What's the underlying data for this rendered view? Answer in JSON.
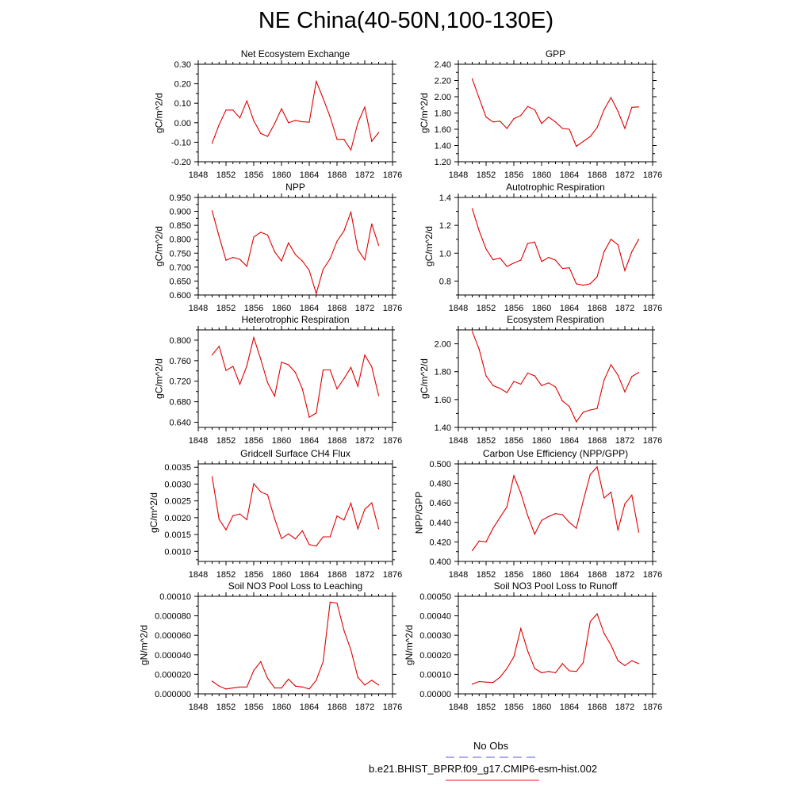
{
  "title": "NE China(40-50N,100-130E)",
  "legend": {
    "obs_label": "No Obs",
    "obs_color": "#5555dd",
    "model_label": "b.e21.BHIST_BPRP.f09_g17.CMIP6-esm-hist.002",
    "model_color": "#e8141e"
  },
  "line_color": "#e00000",
  "chart_data": [
    {
      "type": "line",
      "title": "Net Ecosystem Exchange",
      "ylabel": "gC/m^2/d",
      "xlim": [
        1848,
        1876
      ],
      "xticks": [
        1848,
        1852,
        1856,
        1860,
        1864,
        1868,
        1872,
        1876
      ],
      "ylim": [
        -0.2,
        0.3
      ],
      "yticks": [
        "-0.20",
        "-0.10",
        "0.00",
        "0.10",
        "0.20",
        "0.30"
      ],
      "x": [
        1850,
        1851,
        1852,
        1853,
        1854,
        1855,
        1856,
        1857,
        1858,
        1859,
        1860,
        1861,
        1862,
        1863,
        1864,
        1865,
        1866,
        1867,
        1868,
        1869,
        1870,
        1871,
        1872,
        1873,
        1874
      ],
      "values": [
        -0.105,
        -0.01,
        0.065,
        0.065,
        0.025,
        0.112,
        0.01,
        -0.055,
        -0.07,
        -0.005,
        0.072,
        0.0,
        0.012,
        0.005,
        0.003,
        0.212,
        0.125,
        0.03,
        -0.085,
        -0.085,
        -0.14,
        0.0,
        0.08,
        -0.095,
        -0.05
      ]
    },
    {
      "type": "line",
      "title": "GPP",
      "ylabel": "gC/m^2/d",
      "xlim": [
        1848,
        1876
      ],
      "xticks": [
        1848,
        1852,
        1856,
        1860,
        1864,
        1868,
        1872,
        1876
      ],
      "ylim": [
        1.2,
        2.4
      ],
      "yticks": [
        "1.20",
        "1.40",
        "1.60",
        "1.80",
        "2.00",
        "2.20",
        "2.40"
      ],
      "x": [
        1850,
        1851,
        1852,
        1853,
        1854,
        1855,
        1856,
        1857,
        1858,
        1859,
        1860,
        1861,
        1862,
        1863,
        1864,
        1865,
        1866,
        1867,
        1868,
        1869,
        1870,
        1871,
        1872,
        1873,
        1874
      ],
      "values": [
        2.22,
        1.98,
        1.75,
        1.69,
        1.7,
        1.61,
        1.73,
        1.77,
        1.88,
        1.84,
        1.67,
        1.75,
        1.69,
        1.61,
        1.6,
        1.39,
        1.45,
        1.51,
        1.62,
        1.84,
        1.99,
        1.82,
        1.61,
        1.87,
        1.875
      ]
    },
    {
      "type": "line",
      "title": "NPP",
      "ylabel": "gC/m^2/d",
      "xlim": [
        1848,
        1876
      ],
      "xticks": [
        1848,
        1852,
        1856,
        1860,
        1864,
        1868,
        1872,
        1876
      ],
      "ylim": [
        0.6,
        0.95
      ],
      "yticks": [
        "0.600",
        "0.650",
        "0.700",
        "0.750",
        "0.800",
        "0.850",
        "0.900",
        "0.950"
      ],
      "x": [
        1850,
        1851,
        1852,
        1853,
        1854,
        1855,
        1856,
        1857,
        1858,
        1859,
        1860,
        1861,
        1862,
        1863,
        1864,
        1865,
        1866,
        1867,
        1868,
        1869,
        1870,
        1871,
        1872,
        1873,
        1874
      ],
      "values": [
        0.902,
        0.81,
        0.725,
        0.735,
        0.728,
        0.703,
        0.808,
        0.825,
        0.815,
        0.755,
        0.722,
        0.787,
        0.745,
        0.722,
        0.688,
        0.605,
        0.692,
        0.73,
        0.793,
        0.83,
        0.897,
        0.763,
        0.726,
        0.855,
        0.778
      ]
    },
    {
      "type": "line",
      "title": "Autotrophic Respiration",
      "ylabel": "gC/m^2/d",
      "xlim": [
        1848,
        1876
      ],
      "xticks": [
        1848,
        1852,
        1856,
        1860,
        1864,
        1868,
        1872,
        1876
      ],
      "ylim": [
        0.7,
        1.4
      ],
      "yticks": [
        "0.8",
        "1.0",
        "1.2",
        "1.4"
      ],
      "x": [
        1850,
        1851,
        1852,
        1853,
        1854,
        1855,
        1856,
        1857,
        1858,
        1859,
        1860,
        1861,
        1862,
        1863,
        1864,
        1865,
        1866,
        1867,
        1868,
        1869,
        1870,
        1871,
        1872,
        1873,
        1874
      ],
      "values": [
        1.32,
        1.16,
        1.03,
        0.952,
        0.965,
        0.905,
        0.93,
        0.95,
        1.07,
        1.08,
        0.94,
        0.97,
        0.95,
        0.89,
        0.895,
        0.78,
        0.77,
        0.78,
        0.83,
        1.01,
        1.1,
        1.06,
        0.875,
        1.01,
        1.1
      ]
    },
    {
      "type": "line",
      "title": "Heterotrophic Respiration",
      "ylabel": "gC/m^2/d",
      "xlim": [
        1848,
        1876
      ],
      "xticks": [
        1848,
        1852,
        1856,
        1860,
        1864,
        1868,
        1872,
        1876
      ],
      "ylim": [
        0.63,
        0.82
      ],
      "yticks": [
        "0.640",
        "0.680",
        "0.720",
        "0.760",
        "0.800"
      ],
      "x": [
        1850,
        1851,
        1852,
        1853,
        1854,
        1855,
        1856,
        1857,
        1858,
        1859,
        1860,
        1861,
        1862,
        1863,
        1864,
        1865,
        1866,
        1867,
        1868,
        1869,
        1870,
        1871,
        1872,
        1873,
        1874
      ],
      "values": [
        0.771,
        0.788,
        0.741,
        0.749,
        0.714,
        0.75,
        0.805,
        0.763,
        0.717,
        0.691,
        0.757,
        0.752,
        0.737,
        0.705,
        0.65,
        0.658,
        0.742,
        0.742,
        0.705,
        0.725,
        0.747,
        0.71,
        0.771,
        0.748,
        0.692
      ]
    },
    {
      "type": "line",
      "title": "Ecosystem Respiration",
      "ylabel": "gC/m^2/d",
      "xlim": [
        1848,
        1876
      ],
      "xticks": [
        1848,
        1852,
        1856,
        1860,
        1864,
        1868,
        1872,
        1876
      ],
      "ylim": [
        1.4,
        2.1
      ],
      "yticks": [
        "1.40",
        "1.60",
        "1.80",
        "2.00"
      ],
      "x": [
        1850,
        1851,
        1852,
        1853,
        1854,
        1855,
        1856,
        1857,
        1858,
        1859,
        1860,
        1861,
        1862,
        1863,
        1864,
        1865,
        1866,
        1867,
        1868,
        1869,
        1870,
        1871,
        1872,
        1873,
        1874
      ],
      "values": [
        2.09,
        1.96,
        1.77,
        1.7,
        1.68,
        1.65,
        1.73,
        1.71,
        1.79,
        1.77,
        1.7,
        1.72,
        1.69,
        1.59,
        1.55,
        1.44,
        1.51,
        1.525,
        1.535,
        1.74,
        1.85,
        1.775,
        1.655,
        1.765,
        1.795
      ]
    },
    {
      "type": "line",
      "title": "Gridcell Surface CH4 Flux",
      "ylabel": "gC/m^2/d",
      "xlim": [
        1848,
        1876
      ],
      "xticks": [
        1848,
        1852,
        1856,
        1860,
        1864,
        1868,
        1872,
        1876
      ],
      "ylim": [
        0.0007,
        0.0036
      ],
      "yticks": [
        "0.0010",
        "0.0015",
        "0.0020",
        "0.0025",
        "0.0030",
        "0.0035"
      ],
      "x": [
        1850,
        1851,
        1852,
        1853,
        1854,
        1855,
        1856,
        1857,
        1858,
        1859,
        1860,
        1861,
        1862,
        1863,
        1864,
        1865,
        1866,
        1867,
        1868,
        1869,
        1870,
        1871,
        1872,
        1873,
        1874
      ],
      "values": [
        0.00322,
        0.00195,
        0.00164,
        0.00206,
        0.00211,
        0.00194,
        0.00301,
        0.00277,
        0.00268,
        0.00197,
        0.00138,
        0.00152,
        0.00137,
        0.00161,
        0.0012,
        0.00116,
        0.00143,
        0.00143,
        0.00205,
        0.00193,
        0.00243,
        0.00167,
        0.00225,
        0.00244,
        0.00167
      ]
    },
    {
      "type": "line",
      "title": "Carbon Use Efficiency (NPP/GPP)",
      "ylabel": "NPP/GPP",
      "xlim": [
        1848,
        1876
      ],
      "xticks": [
        1848,
        1852,
        1856,
        1860,
        1864,
        1868,
        1872,
        1876
      ],
      "ylim": [
        0.4,
        0.5
      ],
      "yticks": [
        "0.400",
        "0.420",
        "0.440",
        "0.460",
        "0.480",
        "0.500"
      ],
      "x": [
        1850,
        1851,
        1852,
        1853,
        1854,
        1855,
        1856,
        1857,
        1858,
        1859,
        1860,
        1861,
        1862,
        1863,
        1864,
        1865,
        1866,
        1867,
        1868,
        1869,
        1870,
        1871,
        1872,
        1873,
        1874
      ],
      "values": [
        0.411,
        0.421,
        0.42,
        0.434,
        0.445,
        0.456,
        0.488,
        0.47,
        0.447,
        0.428,
        0.442,
        0.446,
        0.449,
        0.448,
        0.44,
        0.434,
        0.462,
        0.489,
        0.497,
        0.465,
        0.471,
        0.432,
        0.459,
        0.468,
        0.43
      ]
    },
    {
      "type": "line",
      "title": "Soil NO3 Pool Loss to Leaching",
      "ylabel": "gN/m^2/d",
      "xlim": [
        1848,
        1876
      ],
      "xticks": [
        1848,
        1852,
        1856,
        1860,
        1864,
        1868,
        1872,
        1876
      ],
      "ylim": [
        0.0,
        0.0001
      ],
      "yticks": [
        "0.000000",
        "0.000020",
        "0.000040",
        "0.000060",
        "0.000080",
        "0.00010"
      ],
      "x": [
        1850,
        1851,
        1852,
        1853,
        1854,
        1855,
        1856,
        1857,
        1858,
        1859,
        1860,
        1861,
        1862,
        1863,
        1864,
        1865,
        1866,
        1867,
        1868,
        1869,
        1870,
        1871,
        1872,
        1873,
        1874
      ],
      "values": [
        1.3e-05,
        8e-06,
        5e-06,
        6e-06,
        7e-06,
        7e-06,
        2.4e-05,
        3.3e-05,
        1.6e-05,
        6e-06,
        6e-06,
        1.5e-05,
        8e-06,
        7e-06,
        5e-06,
        1.4e-05,
        3.3e-05,
        9.4e-05,
        9.3e-05,
        6.5e-05,
        4.5e-05,
        1.7e-05,
        9e-06,
        1.4e-05,
        9e-06
      ]
    },
    {
      "type": "line",
      "title": "Soil NO3 Pool Loss to Runoff",
      "ylabel": "gN/m^2/d",
      "xlim": [
        1848,
        1876
      ],
      "xticks": [
        1848,
        1852,
        1856,
        1860,
        1864,
        1868,
        1872,
        1876
      ],
      "ylim": [
        0.0,
        0.0005
      ],
      "yticks": [
        "0.00000",
        "0.00010",
        "0.00020",
        "0.00030",
        "0.00040",
        "0.00050"
      ],
      "x": [
        1850,
        1851,
        1852,
        1853,
        1854,
        1855,
        1856,
        1857,
        1858,
        1859,
        1860,
        1861,
        1862,
        1863,
        1864,
        1865,
        1866,
        1867,
        1868,
        1869,
        1870,
        1871,
        1872,
        1873,
        1874
      ],
      "values": [
        5e-05,
        6.3e-05,
        6e-05,
        5.8e-05,
        8.5e-05,
        0.00013,
        0.00019,
        0.000335,
        0.00022,
        0.00013,
        0.000108,
        0.000115,
        0.000108,
        0.000155,
        0.000118,
        0.000115,
        0.00016,
        0.00037,
        0.00041,
        0.00031,
        0.00025,
        0.00017,
        0.000145,
        0.00017,
        0.000155
      ]
    }
  ]
}
